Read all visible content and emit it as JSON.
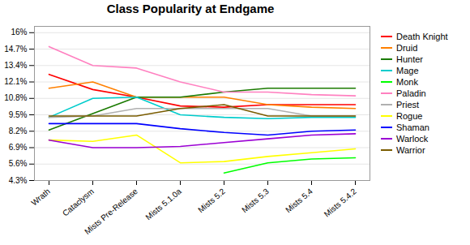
{
  "chart_data": {
    "type": "line",
    "title": "Class Popularity at Endgame",
    "categories": [
      "Wrath",
      "Cataclysm",
      "Mists Pre-Release",
      "Mists 5.1.0a",
      "Mists 5.2",
      "Mists 5.3",
      "Mists 5.4",
      "Mists 5.4.2"
    ],
    "series": [
      {
        "name": "Death Knight",
        "color": "#ff0000",
        "values": [
          0.127,
          0.115,
          0.109,
          0.102,
          0.101,
          0.103,
          0.103,
          0.103
        ]
      },
      {
        "name": "Druid",
        "color": "#ff8000",
        "values": [
          0.116,
          0.121,
          0.109,
          0.109,
          0.109,
          0.103,
          0.101,
          0.1
        ]
      },
      {
        "name": "Hunter",
        "color": "#1a7a00",
        "values": [
          0.083,
          0.096,
          0.109,
          0.109,
          0.113,
          0.116,
          0.116,
          0.116
        ]
      },
      {
        "name": "Mage",
        "color": "#00cccc",
        "values": [
          0.093,
          0.108,
          0.109,
          0.095,
          0.093,
          0.092,
          0.093,
          0.093
        ]
      },
      {
        "name": "Monk",
        "color": "#00ff00",
        "values": [
          null,
          null,
          null,
          null,
          0.049,
          0.057,
          0.06,
          0.061
        ]
      },
      {
        "name": "Paladin",
        "color": "#ff80c0",
        "values": [
          0.149,
          0.134,
          0.132,
          0.121,
          0.113,
          0.113,
          0.111,
          0.11
        ]
      },
      {
        "name": "Priest",
        "color": "#b0b0b0",
        "values": [
          0.093,
          0.094,
          0.1,
          0.1,
          0.1,
          0.1,
          0.094,
          0.094
        ]
      },
      {
        "name": "Rogue",
        "color": "#ffff00",
        "values": [
          0.075,
          0.074,
          0.079,
          0.057,
          0.058,
          0.062,
          0.065,
          0.068
        ]
      },
      {
        "name": "Shaman",
        "color": "#0000ff",
        "values": [
          0.088,
          0.088,
          0.088,
          0.084,
          0.081,
          0.079,
          0.082,
          0.083
        ]
      },
      {
        "name": "Warlock",
        "color": "#9b00d4",
        "values": [
          0.075,
          0.069,
          0.069,
          0.07,
          0.073,
          0.076,
          0.079,
          0.08
        ]
      },
      {
        "name": "Warrior",
        "color": "#7a5c00",
        "values": [
          0.094,
          0.094,
          0.094,
          0.1,
          0.103,
          0.094,
          0.094,
          0.094
        ]
      }
    ],
    "ylim": [
      0.043,
      0.165
    ],
    "yticks": [
      {
        "value": 0.043,
        "label": "4.3%"
      },
      {
        "value": 0.056,
        "label": "5.6%"
      },
      {
        "value": 0.069,
        "label": "6.9%"
      },
      {
        "value": 0.082,
        "label": "8.2%"
      },
      {
        "value": 0.095,
        "label": "9.5%"
      },
      {
        "value": 0.108,
        "label": "10.8%"
      },
      {
        "value": 0.121,
        "label": "12.1%"
      },
      {
        "value": 0.134,
        "label": "13.4%"
      },
      {
        "value": 0.147,
        "label": "14.7%"
      },
      {
        "value": 0.16,
        "label": "16%"
      }
    ],
    "grid": true,
    "legend": "right"
  }
}
